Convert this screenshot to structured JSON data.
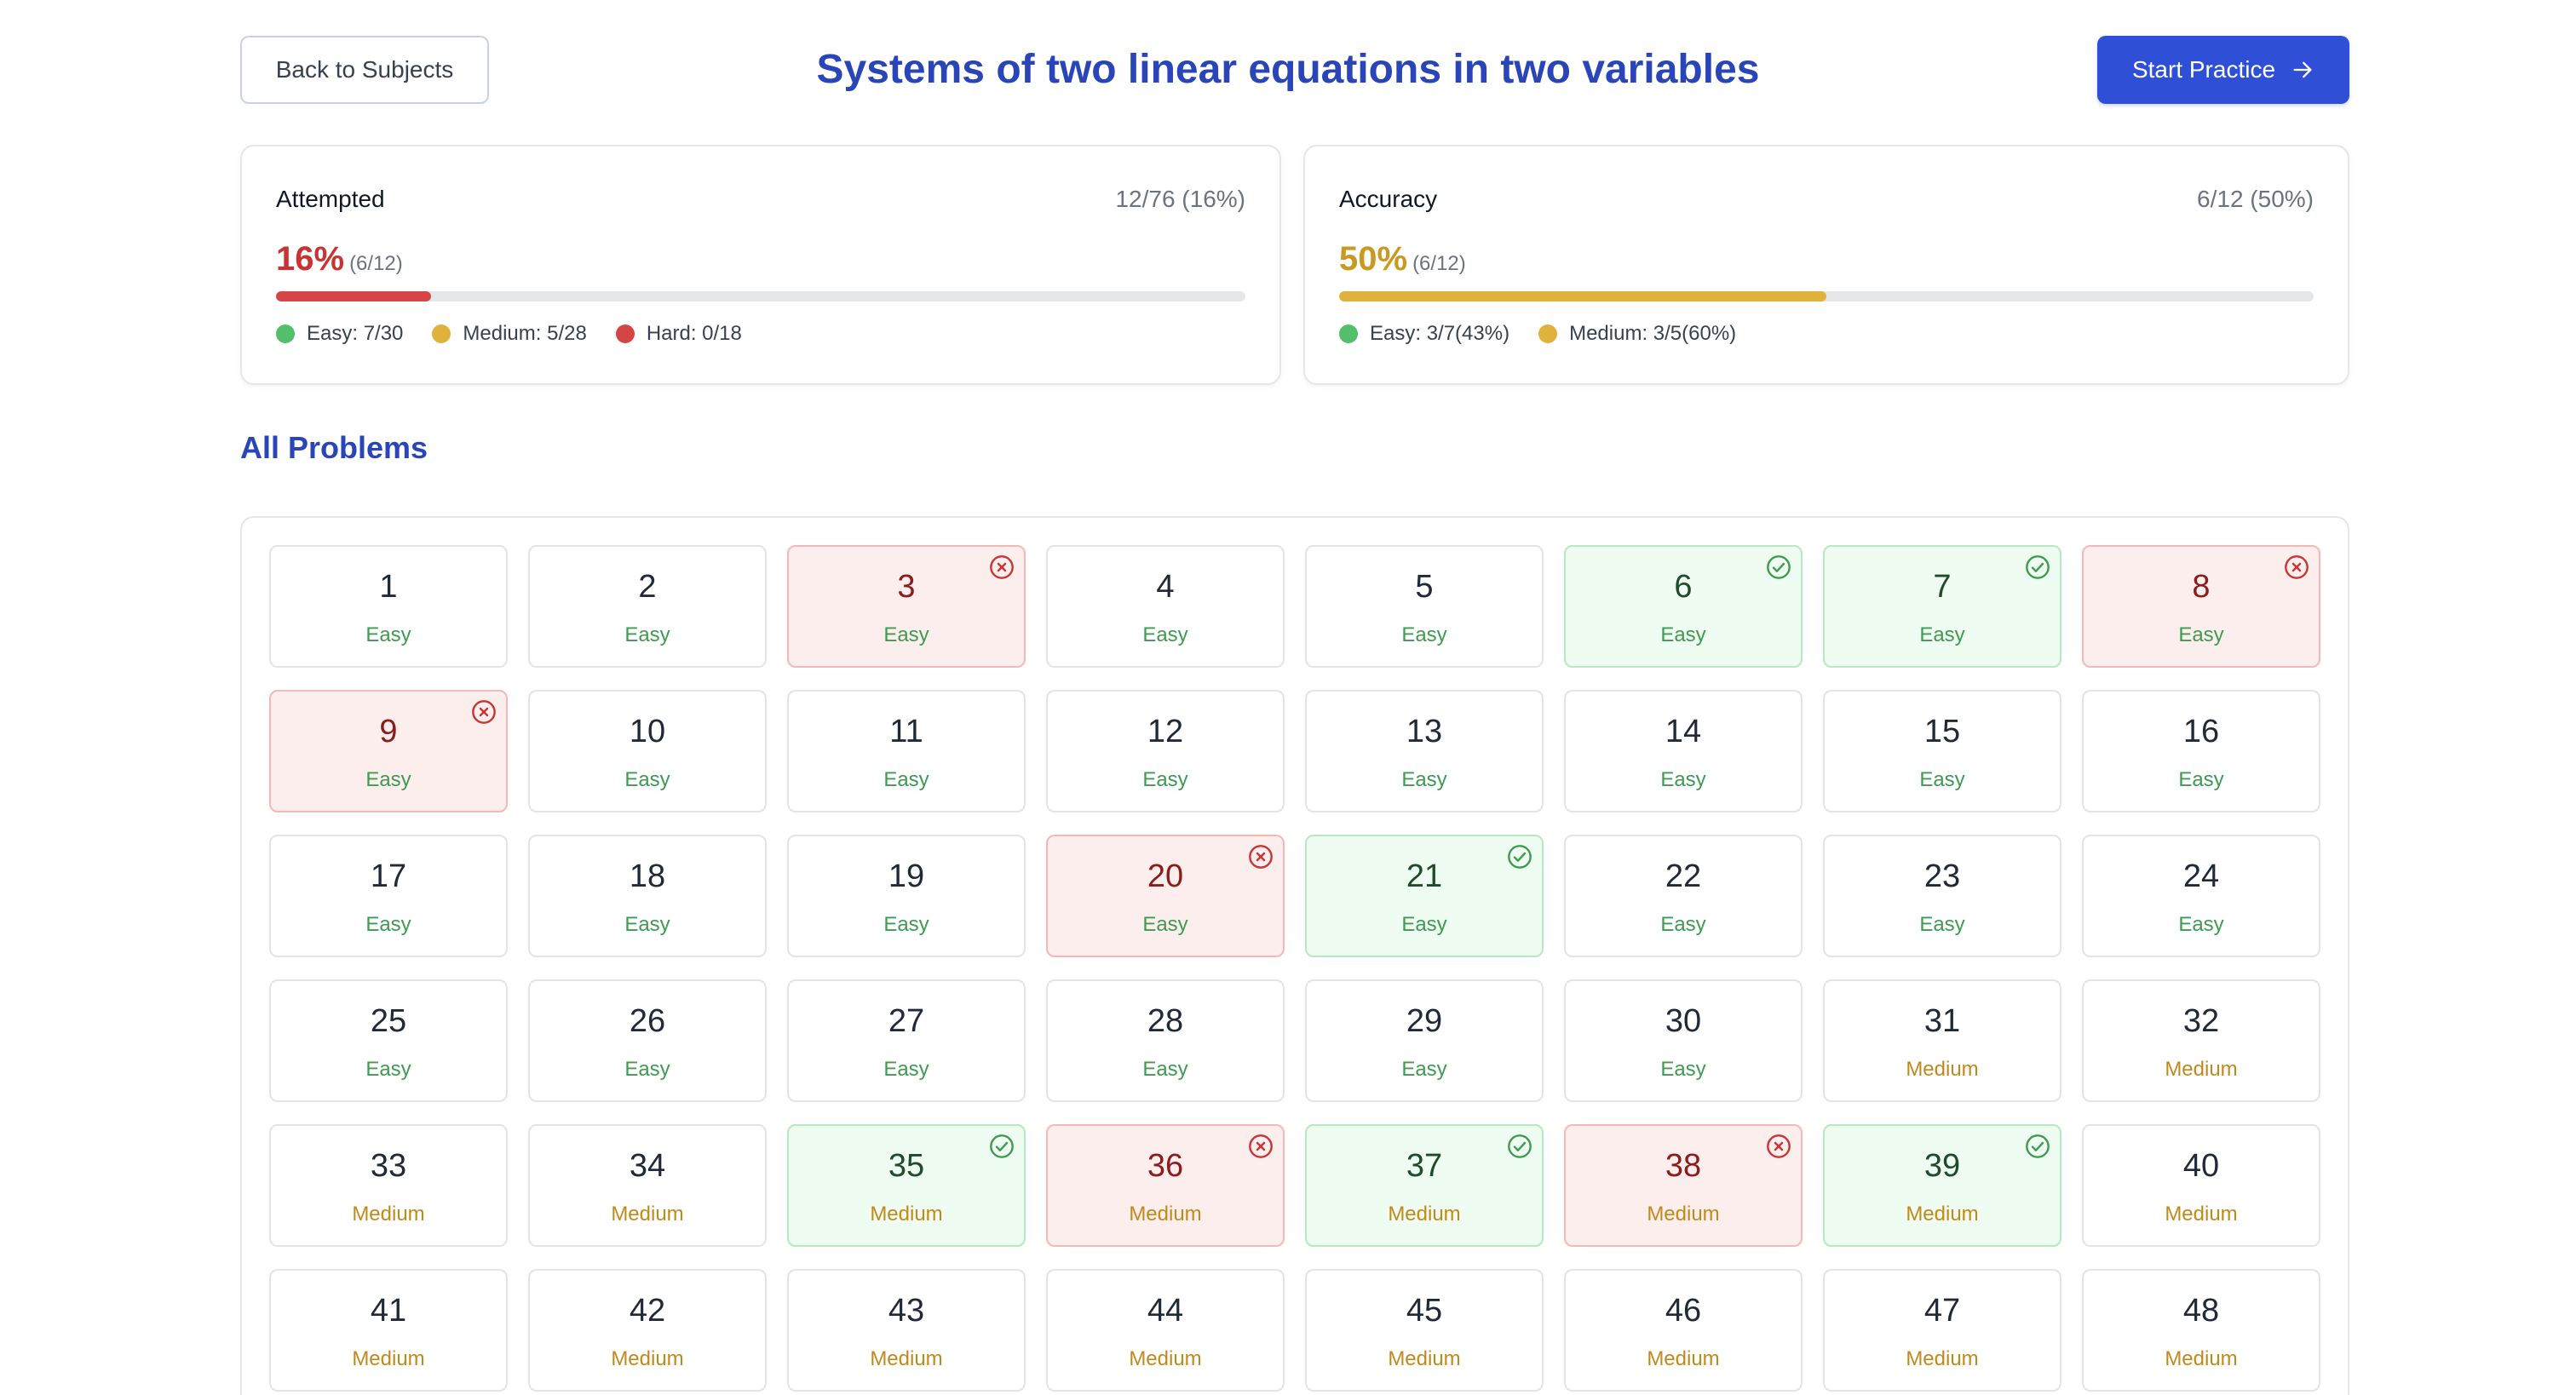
{
  "header": {
    "back_label": "Back to Subjects",
    "title": "Systems of two linear equations in two variables",
    "start_label": "Start Practice"
  },
  "attempted": {
    "label": "Attempted",
    "summary": "12/76 (16%)",
    "percent": "16%",
    "sub": "(6/12)",
    "progress": 0.16,
    "color": "#d64545",
    "legend": [
      {
        "label": "Easy: 7/30",
        "color": "#52c06a"
      },
      {
        "label": "Medium: 5/28",
        "color": "#e1b23b"
      },
      {
        "label": "Hard: 0/18",
        "color": "#d64545"
      }
    ]
  },
  "accuracy": {
    "label": "Accuracy",
    "summary": "6/12 (50%)",
    "percent": "50%",
    "sub": "(6/12)",
    "progress": 0.5,
    "color": "#e1b23b",
    "legend": [
      {
        "label": "Easy: 3/7(43%)",
        "color": "#52c06a"
      },
      {
        "label": "Medium: 3/5(60%)",
        "color": "#e1b23b"
      }
    ]
  },
  "section_title": "All Problems",
  "problems": [
    {
      "n": "1",
      "d": "Easy",
      "s": ""
    },
    {
      "n": "2",
      "d": "Easy",
      "s": ""
    },
    {
      "n": "3",
      "d": "Easy",
      "s": "wrong"
    },
    {
      "n": "4",
      "d": "Easy",
      "s": ""
    },
    {
      "n": "5",
      "d": "Easy",
      "s": ""
    },
    {
      "n": "6",
      "d": "Easy",
      "s": "correct"
    },
    {
      "n": "7",
      "d": "Easy",
      "s": "correct"
    },
    {
      "n": "8",
      "d": "Easy",
      "s": "wrong"
    },
    {
      "n": "9",
      "d": "Easy",
      "s": "wrong"
    },
    {
      "n": "10",
      "d": "Easy",
      "s": ""
    },
    {
      "n": "11",
      "d": "Easy",
      "s": ""
    },
    {
      "n": "12",
      "d": "Easy",
      "s": ""
    },
    {
      "n": "13",
      "d": "Easy",
      "s": ""
    },
    {
      "n": "14",
      "d": "Easy",
      "s": ""
    },
    {
      "n": "15",
      "d": "Easy",
      "s": ""
    },
    {
      "n": "16",
      "d": "Easy",
      "s": ""
    },
    {
      "n": "17",
      "d": "Easy",
      "s": ""
    },
    {
      "n": "18",
      "d": "Easy",
      "s": ""
    },
    {
      "n": "19",
      "d": "Easy",
      "s": ""
    },
    {
      "n": "20",
      "d": "Easy",
      "s": "wrong"
    },
    {
      "n": "21",
      "d": "Easy",
      "s": "correct"
    },
    {
      "n": "22",
      "d": "Easy",
      "s": ""
    },
    {
      "n": "23",
      "d": "Easy",
      "s": ""
    },
    {
      "n": "24",
      "d": "Easy",
      "s": ""
    },
    {
      "n": "25",
      "d": "Easy",
      "s": ""
    },
    {
      "n": "26",
      "d": "Easy",
      "s": ""
    },
    {
      "n": "27",
      "d": "Easy",
      "s": ""
    },
    {
      "n": "28",
      "d": "Easy",
      "s": ""
    },
    {
      "n": "29",
      "d": "Easy",
      "s": ""
    },
    {
      "n": "30",
      "d": "Easy",
      "s": ""
    },
    {
      "n": "31",
      "d": "Medium",
      "s": ""
    },
    {
      "n": "32",
      "d": "Medium",
      "s": ""
    },
    {
      "n": "33",
      "d": "Medium",
      "s": ""
    },
    {
      "n": "34",
      "d": "Medium",
      "s": ""
    },
    {
      "n": "35",
      "d": "Medium",
      "s": "correct"
    },
    {
      "n": "36",
      "d": "Medium",
      "s": "wrong"
    },
    {
      "n": "37",
      "d": "Medium",
      "s": "correct"
    },
    {
      "n": "38",
      "d": "Medium",
      "s": "wrong"
    },
    {
      "n": "39",
      "d": "Medium",
      "s": "correct"
    },
    {
      "n": "40",
      "d": "Medium",
      "s": ""
    },
    {
      "n": "41",
      "d": "Medium",
      "s": ""
    },
    {
      "n": "42",
      "d": "Medium",
      "s": ""
    },
    {
      "n": "43",
      "d": "Medium",
      "s": ""
    },
    {
      "n": "44",
      "d": "Medium",
      "s": ""
    },
    {
      "n": "45",
      "d": "Medium",
      "s": ""
    },
    {
      "n": "46",
      "d": "Medium",
      "s": ""
    },
    {
      "n": "47",
      "d": "Medium",
      "s": ""
    },
    {
      "n": "48",
      "d": "Medium",
      "s": ""
    }
  ],
  "icons": {
    "start": "arrow-right-icon",
    "correct": "check-circle-icon",
    "wrong": "x-circle-icon"
  }
}
